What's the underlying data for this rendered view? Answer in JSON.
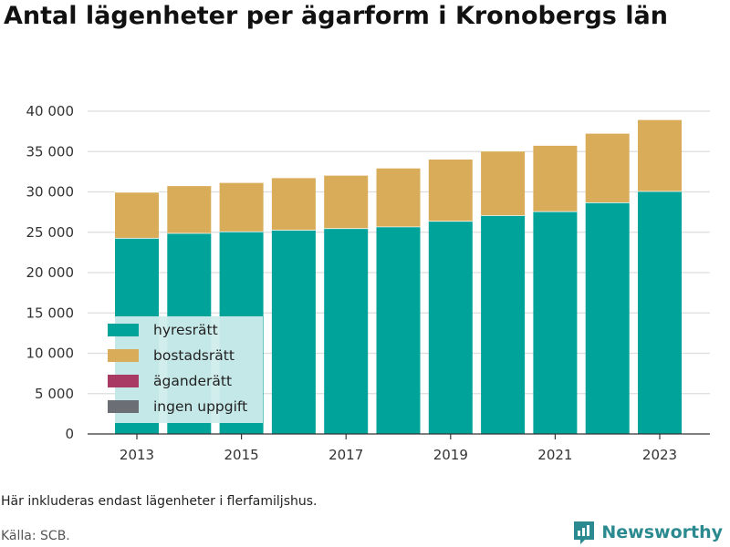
{
  "title": "Antal lägenheter per ägarform i Kronobergs län",
  "note": "Här inkluderas endast lägenheter i flerfamiljshus.",
  "source": "Källa: SCB.",
  "brand": "Newsworthy",
  "colors": {
    "hyresratt": "#00a39a",
    "bostadsratt": "#d9ac5a",
    "aganderatt": "#a83a63",
    "ingen_uppgift": "#6b6f75",
    "legend_bg": "#cfeceb",
    "grid": "#dddddd",
    "brand": "#2a8a8f"
  },
  "chart_data": {
    "type": "bar",
    "stacked": true,
    "title": "Antal lägenheter per ägarform i Kronobergs län",
    "x": [
      2013,
      2014,
      2015,
      2016,
      2017,
      2018,
      2019,
      2020,
      2021,
      2022,
      2023
    ],
    "x_tick_labels": [
      "2013",
      "2015",
      "2017",
      "2019",
      "2021",
      "2023"
    ],
    "ylim": [
      0,
      40000
    ],
    "y_ticks": [
      0,
      5000,
      10000,
      15000,
      20000,
      25000,
      30000,
      35000,
      40000
    ],
    "y_tick_labels": [
      "0",
      "5 000",
      "10 000",
      "15 000",
      "20 000",
      "25 000",
      "30 000",
      "35 000",
      "40 000"
    ],
    "grid": true,
    "legend_position": "bottom-left inside plot",
    "series": [
      {
        "name": "hyresrätt",
        "color": "#00a39a",
        "values": [
          24300,
          24900,
          25100,
          25300,
          25500,
          25700,
          26400,
          27100,
          27600,
          28700,
          30100
        ]
      },
      {
        "name": "bostadsrätt",
        "color": "#d9ac5a",
        "values": [
          5700,
          5900,
          6100,
          6500,
          6600,
          7300,
          7700,
          8000,
          8200,
          8600,
          8900
        ]
      },
      {
        "name": "äganderätt",
        "color": "#a83a63",
        "values": [
          0,
          0,
          0,
          0,
          0,
          0,
          0,
          0,
          0,
          0,
          0
        ]
      },
      {
        "name": "ingen uppgift",
        "color": "#6b6f75",
        "values": [
          0,
          0,
          0,
          0,
          0,
          0,
          0,
          0,
          0,
          0,
          0
        ]
      }
    ]
  }
}
